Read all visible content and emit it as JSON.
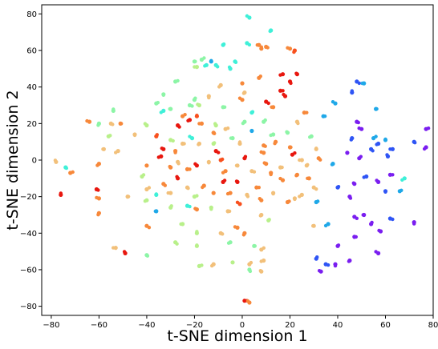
{
  "chart_data": {
    "type": "scatter",
    "title": "",
    "xlabel": "t-SNE dimension 1",
    "ylabel": "t-SNE dimension 2",
    "xlim": [
      -84,
      80
    ],
    "ylim": [
      -85,
      85
    ],
    "xticks": [
      -80,
      -60,
      -40,
      -20,
      0,
      20,
      40,
      60,
      80
    ],
    "yticks": [
      -80,
      -60,
      -40,
      -20,
      0,
      20,
      40,
      60,
      80
    ],
    "grid": false,
    "legend": "none",
    "colormap": "rainbow",
    "colors": {
      "violet": "#7a1ef0",
      "blue": "#2f55f5",
      "sky": "#1fa8e8",
      "cyan": "#3ff0d8",
      "mint": "#8cf5a6",
      "lightgreen": "#b8f08a",
      "tan": "#f2c07a",
      "orange": "#f7883a",
      "redorange": "#f8501e",
      "red": "#e8170f"
    },
    "points": [
      {
        "x": 3,
        "y": 78,
        "c": "cyan"
      },
      {
        "x": 12,
        "y": 71,
        "c": "cyan"
      },
      {
        "x": -8,
        "y": 63,
        "c": "cyan"
      },
      {
        "x": 2,
        "y": 64,
        "c": "cyan"
      },
      {
        "x": 7,
        "y": 63,
        "c": "orange"
      },
      {
        "x": 8,
        "y": 61,
        "c": "orange"
      },
      {
        "x": 10,
        "y": 62,
        "c": "orange"
      },
      {
        "x": 20,
        "y": 61,
        "c": "orange"
      },
      {
        "x": 22,
        "y": 60,
        "c": "redorange"
      },
      {
        "x": -20,
        "y": 54,
        "c": "mint"
      },
      {
        "x": -17,
        "y": 55,
        "c": "mint"
      },
      {
        "x": -15,
        "y": 52,
        "c": "cyan"
      },
      {
        "x": -13,
        "y": 54,
        "c": "sky"
      },
      {
        "x": -11,
        "y": 52,
        "c": "cyan"
      },
      {
        "x": -19,
        "y": 51,
        "c": "lightgreen"
      },
      {
        "x": -5,
        "y": 50,
        "c": "cyan"
      },
      {
        "x": -3,
        "y": 54,
        "c": "cyan"
      },
      {
        "x": -28,
        "y": 43,
        "c": "mint"
      },
      {
        "x": -9,
        "y": 41,
        "c": "tan"
      },
      {
        "x": 0,
        "y": 42,
        "c": "orange"
      },
      {
        "x": 7,
        "y": 45,
        "c": "orange"
      },
      {
        "x": 17,
        "y": 47,
        "c": "red"
      },
      {
        "x": 23,
        "y": 47,
        "c": "red"
      },
      {
        "x": 20,
        "y": 43,
        "c": "red"
      },
      {
        "x": 16,
        "y": 38,
        "c": "red"
      },
      {
        "x": 18,
        "y": 35,
        "c": "red"
      },
      {
        "x": -33,
        "y": 36,
        "c": "mint"
      },
      {
        "x": -36,
        "y": 31,
        "c": "mint"
      },
      {
        "x": -33,
        "y": 27,
        "c": "cyan"
      },
      {
        "x": -30,
        "y": 28,
        "c": "mint"
      },
      {
        "x": -20,
        "y": 33,
        "c": "mint"
      },
      {
        "x": -22,
        "y": 30,
        "c": "mint"
      },
      {
        "x": -18,
        "y": 30,
        "c": "lightgreen"
      },
      {
        "x": -14,
        "y": 35,
        "c": "tan"
      },
      {
        "x": -8,
        "y": 29,
        "c": "mint"
      },
      {
        "x": 0,
        "y": 33,
        "c": "orange"
      },
      {
        "x": 1,
        "y": 37,
        "c": "tan"
      },
      {
        "x": 4,
        "y": 26,
        "c": "cyan"
      },
      {
        "x": 10,
        "y": 32,
        "c": "red"
      },
      {
        "x": 13,
        "y": 29,
        "c": "orange"
      },
      {
        "x": -54,
        "y": 27,
        "c": "mint"
      },
      {
        "x": -55,
        "y": 20,
        "c": "tan"
      },
      {
        "x": -64,
        "y": 21,
        "c": "orange"
      },
      {
        "x": -60,
        "y": 20,
        "c": "mint"
      },
      {
        "x": -51,
        "y": 20,
        "c": "orange"
      },
      {
        "x": -25,
        "y": 24,
        "c": "orange"
      },
      {
        "x": -22,
        "y": 22,
        "c": "red"
      },
      {
        "x": -19,
        "y": 24,
        "c": "redorange"
      },
      {
        "x": -27,
        "y": 19,
        "c": "red"
      },
      {
        "x": -17,
        "y": 20,
        "c": "orange"
      },
      {
        "x": -11,
        "y": 19,
        "c": "lightgreen"
      },
      {
        "x": -12,
        "y": 15,
        "c": "orange"
      },
      {
        "x": -7,
        "y": 17,
        "c": "tan"
      },
      {
        "x": 1,
        "y": 21,
        "c": "mint"
      },
      {
        "x": 4,
        "y": 16,
        "c": "sky"
      },
      {
        "x": 9,
        "y": 21,
        "c": "mint"
      },
      {
        "x": 13,
        "y": 14,
        "c": "mint"
      },
      {
        "x": 19,
        "y": 15,
        "c": "mint"
      },
      {
        "x": 23,
        "y": 21,
        "c": "tan"
      },
      {
        "x": 26,
        "y": 26,
        "c": "orange"
      },
      {
        "x": -40,
        "y": 19,
        "c": "lightgreen"
      },
      {
        "x": -45,
        "y": 14,
        "c": "tan"
      },
      {
        "x": -56,
        "y": 13,
        "c": "lightgreen"
      },
      {
        "x": -52,
        "y": 5,
        "c": "tan"
      },
      {
        "x": -58,
        "y": 6,
        "c": "tan"
      },
      {
        "x": -36,
        "y": 13,
        "c": "redorange"
      },
      {
        "x": -30,
        "y": 11,
        "c": "lightgreen"
      },
      {
        "x": -33,
        "y": 6,
        "c": "red"
      },
      {
        "x": -28,
        "y": 5,
        "c": "orange"
      },
      {
        "x": -25,
        "y": 9,
        "c": "tan"
      },
      {
        "x": -21,
        "y": 12,
        "c": "cyan"
      },
      {
        "x": -18,
        "y": 9,
        "c": "tan"
      },
      {
        "x": -12,
        "y": 9,
        "c": "lightgreen"
      },
      {
        "x": -11,
        "y": 5,
        "c": "red"
      },
      {
        "x": -4,
        "y": 12,
        "c": "mint"
      },
      {
        "x": -1,
        "y": 9,
        "c": "tan"
      },
      {
        "x": 9,
        "y": 8,
        "c": "orange"
      },
      {
        "x": 9,
        "y": 4,
        "c": "orange"
      },
      {
        "x": 14,
        "y": 10,
        "c": "orange"
      },
      {
        "x": 20,
        "y": 7,
        "c": "orange"
      },
      {
        "x": 21,
        "y": 3,
        "c": "red"
      },
      {
        "x": 29,
        "y": 13,
        "c": "mint"
      },
      {
        "x": 31,
        "y": 6,
        "c": "tan"
      },
      {
        "x": 32,
        "y": 1,
        "c": "orange"
      },
      {
        "x": 25,
        "y": 0,
        "c": "tan"
      },
      {
        "x": -78,
        "y": -1,
        "c": "tan"
      },
      {
        "x": -74,
        "y": -4,
        "c": "cyan"
      },
      {
        "x": -72,
        "y": -7,
        "c": "orange"
      },
      {
        "x": -60,
        "y": -2,
        "c": "orange"
      },
      {
        "x": -40,
        "y": -3,
        "c": "orange"
      },
      {
        "x": -42,
        "y": -9,
        "c": "lightgreen"
      },
      {
        "x": -34,
        "y": 2,
        "c": "red"
      },
      {
        "x": -30,
        "y": -4,
        "c": "orange"
      },
      {
        "x": -27,
        "y": -1,
        "c": "tan"
      },
      {
        "x": -23,
        "y": -5,
        "c": "orange"
      },
      {
        "x": -19,
        "y": -3,
        "c": "red"
      },
      {
        "x": -14,
        "y": -1,
        "c": "tan"
      },
      {
        "x": -9,
        "y": 0,
        "c": "redorange"
      },
      {
        "x": -7,
        "y": -6,
        "c": "orange"
      },
      {
        "x": -2,
        "y": -3,
        "c": "tan"
      },
      {
        "x": 1,
        "y": 1,
        "c": "red"
      },
      {
        "x": 4,
        "y": -6,
        "c": "tan"
      },
      {
        "x": 10,
        "y": -2,
        "c": "orange"
      },
      {
        "x": 12,
        "y": -7,
        "c": "orange"
      },
      {
        "x": 16,
        "y": -4,
        "c": "tan"
      },
      {
        "x": 17,
        "y": -11,
        "c": "orange"
      },
      {
        "x": 23,
        "y": -8,
        "c": "orange"
      },
      {
        "x": 27,
        "y": -3,
        "c": "tan"
      },
      {
        "x": 30,
        "y": -15,
        "c": "tan"
      },
      {
        "x": 28,
        "y": -10,
        "c": "orange"
      },
      {
        "x": -76,
        "y": -19,
        "c": "red"
      },
      {
        "x": -61,
        "y": -16,
        "c": "red"
      },
      {
        "x": -60,
        "y": -21,
        "c": "orange"
      },
      {
        "x": -60,
        "y": -29,
        "c": "orange"
      },
      {
        "x": -48,
        "y": -20,
        "c": "tan"
      },
      {
        "x": -40,
        "y": -16,
        "c": "tan"
      },
      {
        "x": -40,
        "y": -22,
        "c": "lightgreen"
      },
      {
        "x": -36,
        "y": -19,
        "c": "cyan"
      },
      {
        "x": -33,
        "y": -13,
        "c": "orange"
      },
      {
        "x": -30,
        "y": -18,
        "c": "tan"
      },
      {
        "x": -27,
        "y": -10,
        "c": "red"
      },
      {
        "x": -23,
        "y": -15,
        "c": "tan"
      },
      {
        "x": -20,
        "y": -20,
        "c": "lightgreen"
      },
      {
        "x": -16,
        "y": -14,
        "c": "orange"
      },
      {
        "x": -12,
        "y": -18,
        "c": "orange"
      },
      {
        "x": -8,
        "y": -12,
        "c": "red"
      },
      {
        "x": -5,
        "y": -18,
        "c": "orange"
      },
      {
        "x": -2,
        "y": -12,
        "c": "red"
      },
      {
        "x": 2,
        "y": -19,
        "c": "tan"
      },
      {
        "x": 6,
        "y": -15,
        "c": "orange"
      },
      {
        "x": 8,
        "y": -22,
        "c": "orange"
      },
      {
        "x": 13,
        "y": -18,
        "c": "tan"
      },
      {
        "x": 19,
        "y": -23,
        "c": "orange"
      },
      {
        "x": 25,
        "y": -19,
        "c": "tan"
      },
      {
        "x": -36,
        "y": -28,
        "c": "sky"
      },
      {
        "x": -30,
        "y": -26,
        "c": "lightgreen"
      },
      {
        "x": -23,
        "y": -25,
        "c": "cyan"
      },
      {
        "x": -19,
        "y": -27,
        "c": "orange"
      },
      {
        "x": -13,
        "y": -26,
        "c": "lightgreen"
      },
      {
        "x": -6,
        "y": -28,
        "c": "tan"
      },
      {
        "x": -1,
        "y": -24,
        "c": "redorange"
      },
      {
        "x": 8,
        "y": -30,
        "c": "tan"
      },
      {
        "x": 11,
        "y": -33,
        "c": "lightgreen"
      },
      {
        "x": -40,
        "y": -36,
        "c": "orange"
      },
      {
        "x": -25,
        "y": -35,
        "c": "lightgreen"
      },
      {
        "x": -19,
        "y": -40,
        "c": "lightgreen"
      },
      {
        "x": -9,
        "y": -40,
        "c": "tan"
      },
      {
        "x": -2,
        "y": -37,
        "c": "orange"
      },
      {
        "x": 1,
        "y": -40,
        "c": "orange"
      },
      {
        "x": 5,
        "y": -47,
        "c": "mint"
      },
      {
        "x": 8,
        "y": -49,
        "c": "tan"
      },
      {
        "x": -5,
        "y": -45,
        "c": "mint"
      },
      {
        "x": -19,
        "y": -47,
        "c": "lightgreen"
      },
      {
        "x": -28,
        "y": -45,
        "c": "lightgreen"
      },
      {
        "x": -53,
        "y": -48,
        "c": "tan"
      },
      {
        "x": -49,
        "y": -51,
        "c": "red"
      },
      {
        "x": -40,
        "y": -52,
        "c": "mint"
      },
      {
        "x": -18,
        "y": -58,
        "c": "lightgreen"
      },
      {
        "x": -12,
        "y": -57,
        "c": "tan"
      },
      {
        "x": -4,
        "y": -56,
        "c": "lightgreen"
      },
      {
        "x": 3,
        "y": -57,
        "c": "tan"
      },
      {
        "x": 9,
        "y": -55,
        "c": "tan"
      },
      {
        "x": 8,
        "y": -61,
        "c": "tan"
      },
      {
        "x": 3,
        "y": -60,
        "c": "mint"
      },
      {
        "x": 1,
        "y": -77,
        "c": "red"
      },
      {
        "x": 3,
        "y": -78,
        "c": "orange"
      },
      {
        "x": 22,
        "y": -21,
        "c": "tan"
      },
      {
        "x": 31,
        "y": -23,
        "c": "sky"
      },
      {
        "x": 36,
        "y": -35,
        "c": "sky"
      },
      {
        "x": 30,
        "y": -36,
        "c": "tan"
      },
      {
        "x": 31,
        "y": -54,
        "c": "blue"
      },
      {
        "x": 35,
        "y": -57,
        "c": "blue"
      },
      {
        "x": 33,
        "y": -61,
        "c": "violet"
      },
      {
        "x": 39,
        "y": -57,
        "c": "violet"
      },
      {
        "x": 34,
        "y": 24,
        "c": "sky"
      },
      {
        "x": 39,
        "y": 31,
        "c": "sky"
      },
      {
        "x": 38,
        "y": -2,
        "c": "sky"
      },
      {
        "x": 40,
        "y": -15,
        "c": "blue"
      },
      {
        "x": 48,
        "y": 43,
        "c": "blue"
      },
      {
        "x": 51,
        "y": 42,
        "c": "sky"
      },
      {
        "x": 46,
        "y": 37,
        "c": "blue"
      },
      {
        "x": 48,
        "y": 21,
        "c": "violet"
      },
      {
        "x": 50,
        "y": 17,
        "c": "violet"
      },
      {
        "x": 46,
        "y": 12,
        "c": "blue"
      },
      {
        "x": 56,
        "y": 28,
        "c": "sky"
      },
      {
        "x": 55,
        "y": 12,
        "c": "sky"
      },
      {
        "x": 57,
        "y": 9,
        "c": "blue"
      },
      {
        "x": 60,
        "y": 11,
        "c": "sky"
      },
      {
        "x": 54,
        "y": 6,
        "c": "blue"
      },
      {
        "x": 63,
        "y": 6,
        "c": "blue"
      },
      {
        "x": 61,
        "y": 2,
        "c": "blue"
      },
      {
        "x": 72,
        "y": 10,
        "c": "blue"
      },
      {
        "x": 77,
        "y": 17,
        "c": "violet"
      },
      {
        "x": 77,
        "y": 7,
        "c": "violet"
      },
      {
        "x": 44,
        "y": 4,
        "c": "violet"
      },
      {
        "x": 49,
        "y": 1,
        "c": "violet"
      },
      {
        "x": 52,
        "y": -9,
        "c": "blue"
      },
      {
        "x": 47,
        "y": -13,
        "c": "violet"
      },
      {
        "x": 45,
        "y": -20,
        "c": "violet"
      },
      {
        "x": 62,
        "y": -8,
        "c": "violet"
      },
      {
        "x": 57,
        "y": -12,
        "c": "violet"
      },
      {
        "x": 60,
        "y": -17,
        "c": "blue"
      },
      {
        "x": 66,
        "y": -17,
        "c": "sky"
      },
      {
        "x": 68,
        "y": -10,
        "c": "cyan"
      },
      {
        "x": 51,
        "y": -30,
        "c": "violet"
      },
      {
        "x": 54,
        "y": -35,
        "c": "violet"
      },
      {
        "x": 62,
        "y": -32,
        "c": "blue"
      },
      {
        "x": 58,
        "y": -39,
        "c": "violet"
      },
      {
        "x": 72,
        "y": -34,
        "c": "violet"
      },
      {
        "x": 47,
        "y": -42,
        "c": "violet"
      },
      {
        "x": 57,
        "y": -51,
        "c": "violet"
      },
      {
        "x": 45,
        "y": -55,
        "c": "violet"
      },
      {
        "x": 40,
        "y": -47,
        "c": "violet"
      },
      {
        "x": 47,
        "y": -31,
        "c": "violet"
      }
    ]
  }
}
